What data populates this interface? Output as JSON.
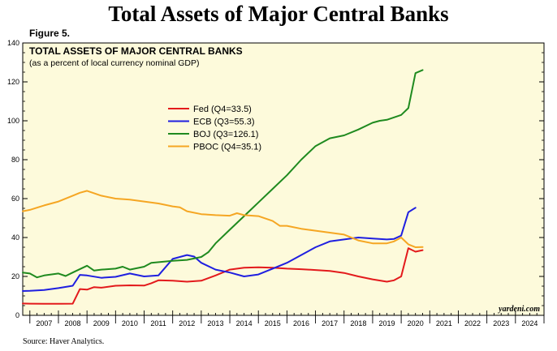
{
  "page": {
    "title": "Total Assets of Major Central Banks",
    "figure_label": "Figure 5.",
    "source": "Source: Haver Analytics.",
    "watermark": "yardeni.com"
  },
  "colors": {
    "plot_background": "#fdfadb",
    "fed": "#e31a1c",
    "ecb": "#1f1fe0",
    "boj": "#1f8a1f",
    "pboc": "#f5a623"
  },
  "chart_data": {
    "type": "line",
    "title": "TOTAL ASSETS OF MAJOR CENTRAL BANKS",
    "subtitle": "(as a percent of local currency nominal GDP)",
    "xlim": [
      2006.75,
      2025
    ],
    "ylim": [
      0,
      140
    ],
    "y_ticks": [
      0,
      20,
      40,
      60,
      80,
      100,
      120,
      140
    ],
    "x_tick_labels": [
      "2007",
      "2008",
      "2009",
      "2010",
      "2011",
      "2012",
      "2013",
      "2014",
      "2015",
      "2016",
      "2017",
      "2018",
      "2019",
      "2020",
      "2021",
      "2022",
      "2023",
      "2024"
    ],
    "grid": false,
    "legend_position": "upper-center",
    "series": [
      {
        "name": "Fed (Q4=33.5)",
        "color_key": "fed",
        "points": [
          [
            2006.75,
            6.1
          ],
          [
            2007.0,
            6.0
          ],
          [
            2007.5,
            5.9
          ],
          [
            2008.0,
            5.9
          ],
          [
            2008.5,
            6.0
          ],
          [
            2008.75,
            13.5
          ],
          [
            2009.0,
            13.2
          ],
          [
            2009.25,
            14.5
          ],
          [
            2009.5,
            14.2
          ],
          [
            2010.0,
            15.2
          ],
          [
            2010.5,
            15.4
          ],
          [
            2011.0,
            15.3
          ],
          [
            2011.25,
            16.5
          ],
          [
            2011.5,
            18.0
          ],
          [
            2012.0,
            17.8
          ],
          [
            2012.5,
            17.3
          ],
          [
            2013.0,
            17.8
          ],
          [
            2013.5,
            20.5
          ],
          [
            2014.0,
            23.5
          ],
          [
            2014.5,
            24.5
          ],
          [
            2015.0,
            24.7
          ],
          [
            2015.5,
            24.5
          ],
          [
            2016.0,
            24.0
          ],
          [
            2016.5,
            23.7
          ],
          [
            2017.0,
            23.3
          ],
          [
            2017.5,
            22.8
          ],
          [
            2018.0,
            21.8
          ],
          [
            2018.5,
            20.0
          ],
          [
            2019.0,
            18.5
          ],
          [
            2019.5,
            17.3
          ],
          [
            2019.75,
            18.0
          ],
          [
            2020.0,
            20.0
          ],
          [
            2020.25,
            34.5
          ],
          [
            2020.5,
            32.7
          ],
          [
            2020.75,
            33.5
          ]
        ]
      },
      {
        "name": "ECB (Q3=55.3)",
        "color_key": "ecb",
        "points": [
          [
            2006.75,
            12.5
          ],
          [
            2007.0,
            12.6
          ],
          [
            2007.5,
            13.0
          ],
          [
            2008.0,
            14.0
          ],
          [
            2008.5,
            15.2
          ],
          [
            2008.75,
            20.8
          ],
          [
            2009.0,
            20.5
          ],
          [
            2009.5,
            19.3
          ],
          [
            2010.0,
            19.8
          ],
          [
            2010.5,
            21.5
          ],
          [
            2011.0,
            20.0
          ],
          [
            2011.5,
            20.5
          ],
          [
            2012.0,
            29.0
          ],
          [
            2012.5,
            31.0
          ],
          [
            2012.75,
            30.2
          ],
          [
            2013.0,
            27.0
          ],
          [
            2013.5,
            23.5
          ],
          [
            2014.0,
            22.0
          ],
          [
            2014.5,
            20.0
          ],
          [
            2015.0,
            21.0
          ],
          [
            2015.5,
            24.0
          ],
          [
            2016.0,
            27.0
          ],
          [
            2016.5,
            31.0
          ],
          [
            2017.0,
            35.0
          ],
          [
            2017.5,
            38.0
          ],
          [
            2018.0,
            39.0
          ],
          [
            2018.5,
            40.0
          ],
          [
            2019.0,
            39.5
          ],
          [
            2019.5,
            39.0
          ],
          [
            2019.75,
            39.3
          ],
          [
            2020.0,
            41.0
          ],
          [
            2020.25,
            53.0
          ],
          [
            2020.5,
            55.3
          ]
        ]
      },
      {
        "name": "BOJ (Q3=126.1)",
        "color_key": "boj",
        "points": [
          [
            2006.75,
            22.0
          ],
          [
            2007.0,
            21.5
          ],
          [
            2007.25,
            19.5
          ],
          [
            2007.5,
            20.5
          ],
          [
            2008.0,
            21.5
          ],
          [
            2008.25,
            20.2
          ],
          [
            2008.5,
            22.0
          ],
          [
            2009.0,
            25.5
          ],
          [
            2009.25,
            23.0
          ],
          [
            2009.5,
            23.5
          ],
          [
            2010.0,
            24.0
          ],
          [
            2010.25,
            25.0
          ],
          [
            2010.5,
            23.5
          ],
          [
            2011.0,
            25.0
          ],
          [
            2011.25,
            27.0
          ],
          [
            2012.0,
            28.0
          ],
          [
            2012.5,
            28.5
          ],
          [
            2013.0,
            30.0
          ],
          [
            2013.25,
            32.5
          ],
          [
            2013.5,
            37.0
          ],
          [
            2014.0,
            44.0
          ],
          [
            2014.5,
            51.0
          ],
          [
            2015.0,
            58.0
          ],
          [
            2015.5,
            65.0
          ],
          [
            2016.0,
            72.0
          ],
          [
            2016.5,
            80.0
          ],
          [
            2017.0,
            87.0
          ],
          [
            2017.5,
            91.0
          ],
          [
            2018.0,
            92.5
          ],
          [
            2018.5,
            95.5
          ],
          [
            2019.0,
            99.0
          ],
          [
            2019.25,
            100.0
          ],
          [
            2019.5,
            100.5
          ],
          [
            2020.0,
            103.0
          ],
          [
            2020.25,
            106.5
          ],
          [
            2020.5,
            124.5
          ],
          [
            2020.75,
            126.1
          ]
        ]
      },
      {
        "name": "PBOC (Q4=35.1)",
        "color_key": "pboc",
        "points": [
          [
            2006.75,
            53.5
          ],
          [
            2007.0,
            54.2
          ],
          [
            2007.5,
            56.5
          ],
          [
            2008.0,
            58.5
          ],
          [
            2008.5,
            61.5
          ],
          [
            2008.75,
            63.0
          ],
          [
            2009.0,
            64.0
          ],
          [
            2009.5,
            61.5
          ],
          [
            2010.0,
            60.0
          ],
          [
            2010.5,
            59.5
          ],
          [
            2011.0,
            58.5
          ],
          [
            2011.5,
            57.5
          ],
          [
            2012.0,
            56.0
          ],
          [
            2012.25,
            55.5
          ],
          [
            2012.5,
            53.5
          ],
          [
            2013.0,
            52.0
          ],
          [
            2013.5,
            51.5
          ],
          [
            2014.0,
            51.2
          ],
          [
            2014.25,
            52.5
          ],
          [
            2014.5,
            51.5
          ],
          [
            2015.0,
            51.0
          ],
          [
            2015.5,
            48.5
          ],
          [
            2015.75,
            46.0
          ],
          [
            2016.0,
            46.0
          ],
          [
            2016.5,
            44.5
          ],
          [
            2017.0,
            43.5
          ],
          [
            2017.5,
            42.5
          ],
          [
            2018.0,
            41.5
          ],
          [
            2018.5,
            38.5
          ],
          [
            2019.0,
            37.0
          ],
          [
            2019.5,
            37.0
          ],
          [
            2019.75,
            38.0
          ],
          [
            2020.0,
            40.0
          ],
          [
            2020.25,
            36.5
          ],
          [
            2020.5,
            35.0
          ],
          [
            2020.75,
            35.1
          ]
        ]
      }
    ]
  }
}
